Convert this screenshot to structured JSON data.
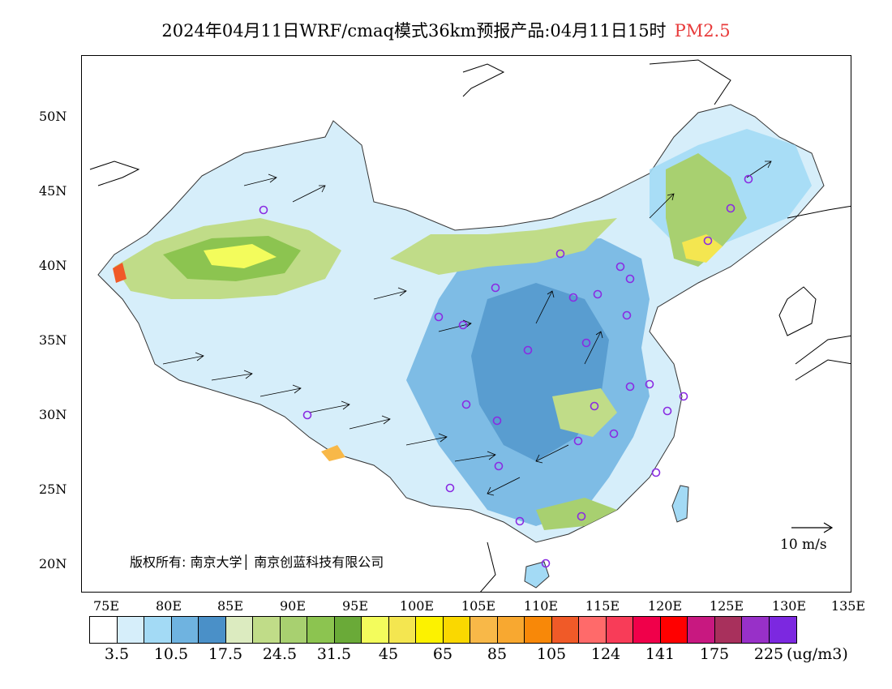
{
  "title": {
    "main": "2024年04月11日WRF/cmaq模式36km预报产品:04月11日15时",
    "pollutant": "PM2.5"
  },
  "axes": {
    "lat_labels": [
      "50N",
      "45N",
      "40N",
      "35N",
      "30N",
      "25N",
      "20N"
    ],
    "lon_labels": [
      "75E",
      "80E",
      "85E",
      "90E",
      "95E",
      "100E",
      "105E",
      "110E",
      "115E",
      "120E",
      "125E",
      "130E",
      "135E"
    ]
  },
  "legend": {
    "colors": [
      "#ffffff",
      "#d6eefa",
      "#a3daf5",
      "#6fb3e0",
      "#4a90c8",
      "#dcebc0",
      "#c0dc88",
      "#a8d070",
      "#8cc450",
      "#6aaa38",
      "#f3fc5c",
      "#f4e650",
      "#fcf200",
      "#fad800",
      "#f8b848",
      "#f8a830",
      "#f88808",
      "#f05a28",
      "#ff6a6a",
      "#f83c58",
      "#f0004a",
      "#ff0000",
      "#c81880",
      "#a8305c",
      "#9830c8",
      "#7c28e0"
    ],
    "labels": [
      "3.5",
      "10.5",
      "17.5",
      "24.5",
      "31.5",
      "45",
      "65",
      "85",
      "105",
      "124",
      "141",
      "175",
      "225"
    ],
    "unit": "(ug/m3)"
  },
  "copyright": "版权所有: 南京大学│ 南京创蓝科技有限公司",
  "wind_reference": "10 m/s"
}
